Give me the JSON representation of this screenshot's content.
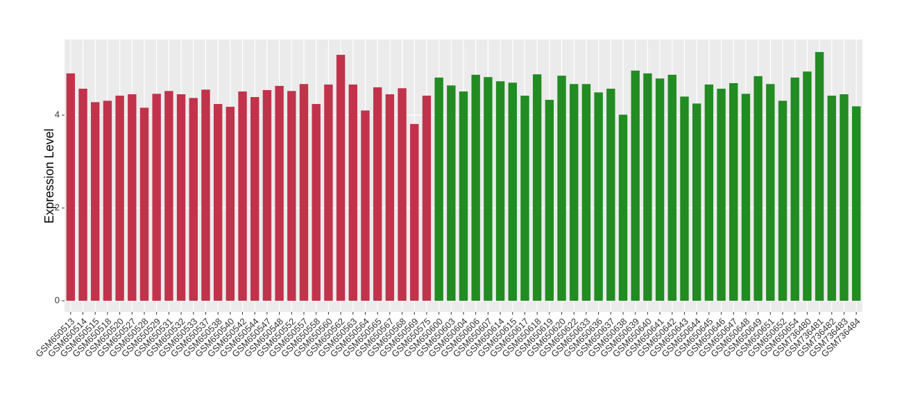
{
  "chart_data": {
    "type": "bar",
    "y_label": "Expression Level",
    "categories": [
      "GSM650513",
      "GSM650514",
      "GSM650515",
      "GSM650518",
      "GSM650520",
      "GSM650527",
      "GSM650528",
      "GSM650529",
      "GSM650531",
      "GSM650532",
      "GSM650533",
      "GSM650537",
      "GSM650538",
      "GSM650540",
      "GSM650542",
      "GSM650544",
      "GSM650547",
      "GSM650548",
      "GSM650552",
      "GSM650557",
      "GSM650558",
      "GSM650560",
      "GSM650562",
      "GSM650563",
      "GSM650564",
      "GSM650565",
      "GSM650567",
      "GSM650568",
      "GSM650569",
      "GSM650575",
      "GSM650600",
      "GSM650603",
      "GSM650604",
      "GSM650606",
      "GSM650607",
      "GSM650614",
      "GSM650615",
      "GSM650617",
      "GSM650618",
      "GSM650619",
      "GSM650620",
      "GSM650622",
      "GSM650633",
      "GSM650636",
      "GSM650637",
      "GSM650638",
      "GSM650639",
      "GSM650640",
      "GSM650641",
      "GSM650642",
      "GSM650643",
      "GSM650644",
      "GSM650645",
      "GSM650646",
      "GSM650647",
      "GSM650648",
      "GSM650649",
      "GSM650651",
      "GSM650652",
      "GSM650654",
      "GSM736480",
      "GSM736481",
      "GSM736482",
      "GSM736483",
      "GSM736484"
    ],
    "values": [
      4.9,
      4.57,
      4.28,
      4.31,
      4.42,
      4.45,
      4.16,
      4.46,
      4.52,
      4.45,
      4.37,
      4.55,
      4.24,
      4.18,
      4.51,
      4.39,
      4.54,
      4.63,
      4.52,
      4.67,
      4.24,
      4.66,
      5.3,
      4.66,
      4.1,
      4.6,
      4.45,
      4.58,
      3.81,
      4.42,
      4.81,
      4.64,
      4.51,
      4.87,
      4.82,
      4.73,
      4.7,
      4.42,
      4.88,
      4.33,
      4.85,
      4.67,
      4.67,
      4.49,
      4.57,
      4.01,
      4.96,
      4.9,
      4.79,
      4.87,
      4.4,
      4.25,
      4.66,
      4.57,
      4.69,
      4.46,
      4.84,
      4.67,
      4.31,
      4.81,
      4.94,
      5.36,
      4.42,
      4.45,
      4.19
    ],
    "bar_colors": [
      "#c0334b",
      "#c0334b",
      "#c0334b",
      "#c0334b",
      "#c0334b",
      "#c0334b",
      "#c0334b",
      "#c0334b",
      "#c0334b",
      "#c0334b",
      "#c0334b",
      "#c0334b",
      "#c0334b",
      "#c0334b",
      "#c0334b",
      "#c0334b",
      "#c0334b",
      "#c0334b",
      "#c0334b",
      "#c0334b",
      "#c0334b",
      "#c0334b",
      "#c0334b",
      "#c0334b",
      "#c0334b",
      "#c0334b",
      "#c0334b",
      "#c0334b",
      "#c0334b",
      "#c0334b",
      "#228b22",
      "#228b22",
      "#228b22",
      "#228b22",
      "#228b22",
      "#228b22",
      "#228b22",
      "#228b22",
      "#228b22",
      "#228b22",
      "#228b22",
      "#228b22",
      "#228b22",
      "#228b22",
      "#228b22",
      "#228b22",
      "#228b22",
      "#228b22",
      "#228b22",
      "#228b22",
      "#228b22",
      "#228b22",
      "#228b22",
      "#228b22",
      "#228b22",
      "#228b22",
      "#228b22",
      "#228b22",
      "#228b22",
      "#228b22",
      "#228b22",
      "#228b22",
      "#228b22",
      "#228b22",
      "#228b22"
    ],
    "ylim": [
      -0.24,
      5.63
    ],
    "yticks": [
      0,
      2,
      4
    ],
    "grid": true
  }
}
